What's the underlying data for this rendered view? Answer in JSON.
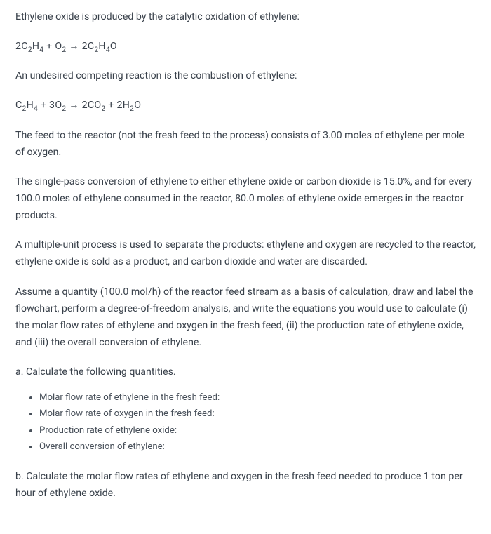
{
  "p1": "Ethylene oxide is produced by the catalytic oxidation of ethylene:",
  "eq1_html": "2C<sub>2</sub>H<sub>4</sub> + O<sub>2</sub> → 2C<sub>2</sub>H<sub>4</sub>O",
  "p2": "An undesired competing reaction is the combustion of ethylene:",
  "eq2_html": "C<sub>2</sub>H<sub>4</sub> + 3O<sub>2</sub> → 2CO<sub>2</sub> + 2H<sub>2</sub>O",
  "p3": "The feed to the reactor (not the fresh feed to the process) consists of 3.00 moles of ethylene per mole of oxygen.",
  "p4": "The single-pass conversion of ethylene to either ethylene oxide or carbon dioxide is 15.0%, and for every 100.0 moles of ethylene consumed in the reactor, 80.0 moles of ethylene oxide emerges in the reactor products.",
  "p5": "A multiple-unit process is used to separate the products: ethylene and oxygen are recycled to the reactor, ethylene oxide is sold as a product, and carbon dioxide and water are discarded.",
  "p6": "Assume a quantity (100.0 mol/h) of the reactor feed stream as a basis of calculation, draw and label the flowchart, perform a degree-of-freedom analysis, and write the equations you would use to calculate (i) the molar flow rates of ethylene and oxygen in the fresh feed, (ii) the production rate of ethylene oxide, and (iii) the overall conversion of ethylene.",
  "partA": "a. Calculate the following quantities.",
  "items": [
    "Molar flow rate of ethylene in the fresh feed:",
    "Molar flow rate of oxygen in the fresh feed:",
    "Production rate of ethylene oxide:",
    "Overall conversion of ethylene:"
  ],
  "partB": "b. Calculate the molar flow rates of ethylene and oxygen in the fresh feed needed to produce 1 ton per hour of ethylene oxide."
}
